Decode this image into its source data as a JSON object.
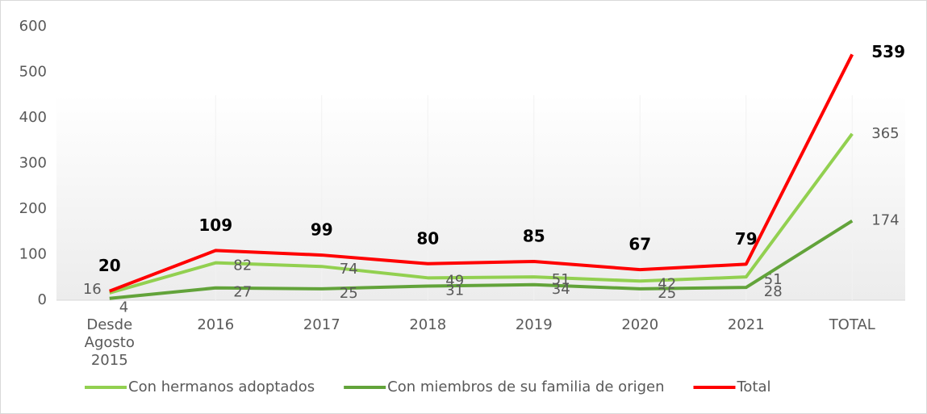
{
  "chart_data": {
    "type": "line",
    "categories": [
      "Desde Agosto 2015",
      "2016",
      "2017",
      "2018",
      "2019",
      "2020",
      "2021",
      "TOTAL"
    ],
    "series": [
      {
        "name": "Con hermanos adoptados",
        "color": "#92d050",
        "values": [
          16,
          82,
          74,
          49,
          51,
          42,
          51,
          365
        ]
      },
      {
        "name": "Con miembros de su familia de origen",
        "color": "#62a33a",
        "values": [
          4,
          27,
          25,
          31,
          34,
          25,
          28,
          174
        ]
      },
      {
        "name": "Total",
        "color": "#ff0000",
        "values": [
          20,
          109,
          99,
          80,
          85,
          67,
          79,
          539
        ]
      }
    ],
    "ylim": [
      0,
      600
    ],
    "yticks": [
      0,
      100,
      200,
      300,
      400,
      500,
      600
    ],
    "legend": "bottom"
  }
}
